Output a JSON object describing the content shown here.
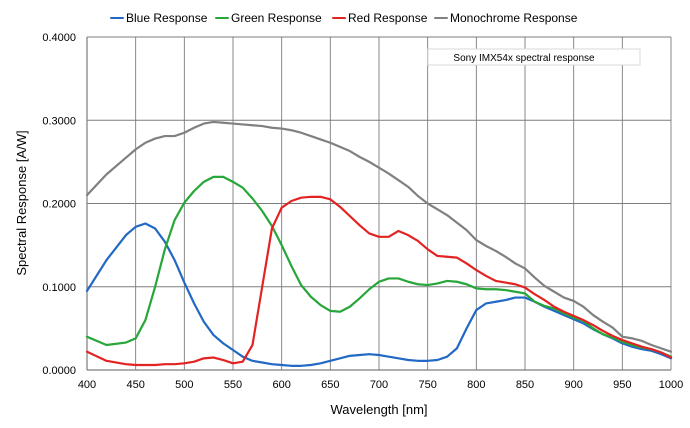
{
  "chart_data": {
    "type": "line",
    "xlabel": "Wavelength [nm]",
    "ylabel": "Spectral Response [A/W]",
    "annotation": "Sony IMX54x spectral response",
    "legend_position": "top",
    "grid": true,
    "xlim": [
      400,
      1000
    ],
    "ylim": [
      0,
      0.4
    ],
    "x_ticks": [
      400,
      450,
      500,
      550,
      600,
      650,
      700,
      750,
      800,
      850,
      900,
      950,
      1000
    ],
    "y_ticks": [
      0.0,
      0.1,
      0.2,
      0.3,
      0.4
    ],
    "x_tick_labels": [
      "400",
      "450",
      "500",
      "550",
      "600",
      "650",
      "700",
      "750",
      "800",
      "850",
      "900",
      "950",
      "1000"
    ],
    "y_tick_labels": [
      "0.0000",
      "0.1000",
      "0.2000",
      "0.3000",
      "0.4000"
    ],
    "x": [
      400,
      420,
      440,
      450,
      460,
      470,
      480,
      490,
      500,
      510,
      520,
      530,
      540,
      550,
      560,
      570,
      580,
      590,
      600,
      610,
      620,
      630,
      640,
      650,
      660,
      670,
      680,
      690,
      700,
      710,
      720,
      730,
      740,
      750,
      760,
      770,
      780,
      790,
      800,
      810,
      820,
      830,
      840,
      850,
      860,
      870,
      880,
      890,
      900,
      910,
      920,
      930,
      940,
      950,
      960,
      970,
      980,
      990,
      1000
    ],
    "series": [
      {
        "name": "Blue Response",
        "color": "#2269c5",
        "values": [
          0.095,
          0.132,
          0.162,
          0.172,
          0.176,
          0.17,
          0.154,
          0.132,
          0.105,
          0.08,
          0.058,
          0.042,
          0.032,
          0.024,
          0.016,
          0.011,
          0.009,
          0.007,
          0.006,
          0.005,
          0.005,
          0.006,
          0.008,
          0.011,
          0.014,
          0.017,
          0.018,
          0.019,
          0.018,
          0.016,
          0.014,
          0.012,
          0.011,
          0.011,
          0.012,
          0.016,
          0.026,
          0.05,
          0.072,
          0.08,
          0.082,
          0.084,
          0.087,
          0.087,
          0.082,
          0.076,
          0.071,
          0.066,
          0.061,
          0.056,
          0.049,
          0.043,
          0.038,
          0.032,
          0.028,
          0.025,
          0.023,
          0.019,
          0.014
        ]
      },
      {
        "name": "Green Response",
        "color": "#27a639",
        "values": [
          0.04,
          0.03,
          0.033,
          0.038,
          0.06,
          0.1,
          0.145,
          0.18,
          0.201,
          0.215,
          0.226,
          0.232,
          0.232,
          0.226,
          0.219,
          0.206,
          0.191,
          0.173,
          0.15,
          0.125,
          0.102,
          0.088,
          0.078,
          0.071,
          0.07,
          0.076,
          0.086,
          0.097,
          0.106,
          0.11,
          0.11,
          0.106,
          0.103,
          0.102,
          0.104,
          0.107,
          0.106,
          0.103,
          0.098,
          0.097,
          0.097,
          0.096,
          0.094,
          0.092,
          0.082,
          0.077,
          0.074,
          0.068,
          0.063,
          0.059,
          0.05,
          0.043,
          0.039,
          0.034,
          0.03,
          0.027,
          0.025,
          0.021,
          0.016
        ]
      },
      {
        "name": "Red Response",
        "color": "#e32222",
        "values": [
          0.022,
          0.011,
          0.007,
          0.006,
          0.006,
          0.006,
          0.007,
          0.007,
          0.008,
          0.01,
          0.014,
          0.015,
          0.012,
          0.008,
          0.01,
          0.03,
          0.1,
          0.17,
          0.195,
          0.203,
          0.207,
          0.208,
          0.208,
          0.205,
          0.196,
          0.185,
          0.174,
          0.164,
          0.16,
          0.16,
          0.167,
          0.162,
          0.155,
          0.145,
          0.137,
          0.136,
          0.135,
          0.128,
          0.12,
          0.113,
          0.107,
          0.105,
          0.103,
          0.099,
          0.091,
          0.084,
          0.076,
          0.07,
          0.065,
          0.06,
          0.054,
          0.047,
          0.041,
          0.036,
          0.032,
          0.028,
          0.025,
          0.021,
          0.015
        ]
      },
      {
        "name": "Monochrome Response",
        "color": "#808080",
        "values": [
          0.21,
          0.235,
          0.255,
          0.265,
          0.273,
          0.278,
          0.281,
          0.281,
          0.285,
          0.291,
          0.296,
          0.298,
          0.297,
          0.296,
          0.295,
          0.294,
          0.293,
          0.291,
          0.29,
          0.288,
          0.285,
          0.281,
          0.277,
          0.273,
          0.268,
          0.263,
          0.256,
          0.25,
          0.243,
          0.236,
          0.228,
          0.22,
          0.209,
          0.2,
          0.193,
          0.186,
          0.177,
          0.168,
          0.156,
          0.149,
          0.143,
          0.136,
          0.128,
          0.122,
          0.111,
          0.101,
          0.094,
          0.087,
          0.083,
          0.076,
          0.066,
          0.058,
          0.051,
          0.04,
          0.038,
          0.035,
          0.03,
          0.026,
          0.022
        ]
      }
    ]
  }
}
